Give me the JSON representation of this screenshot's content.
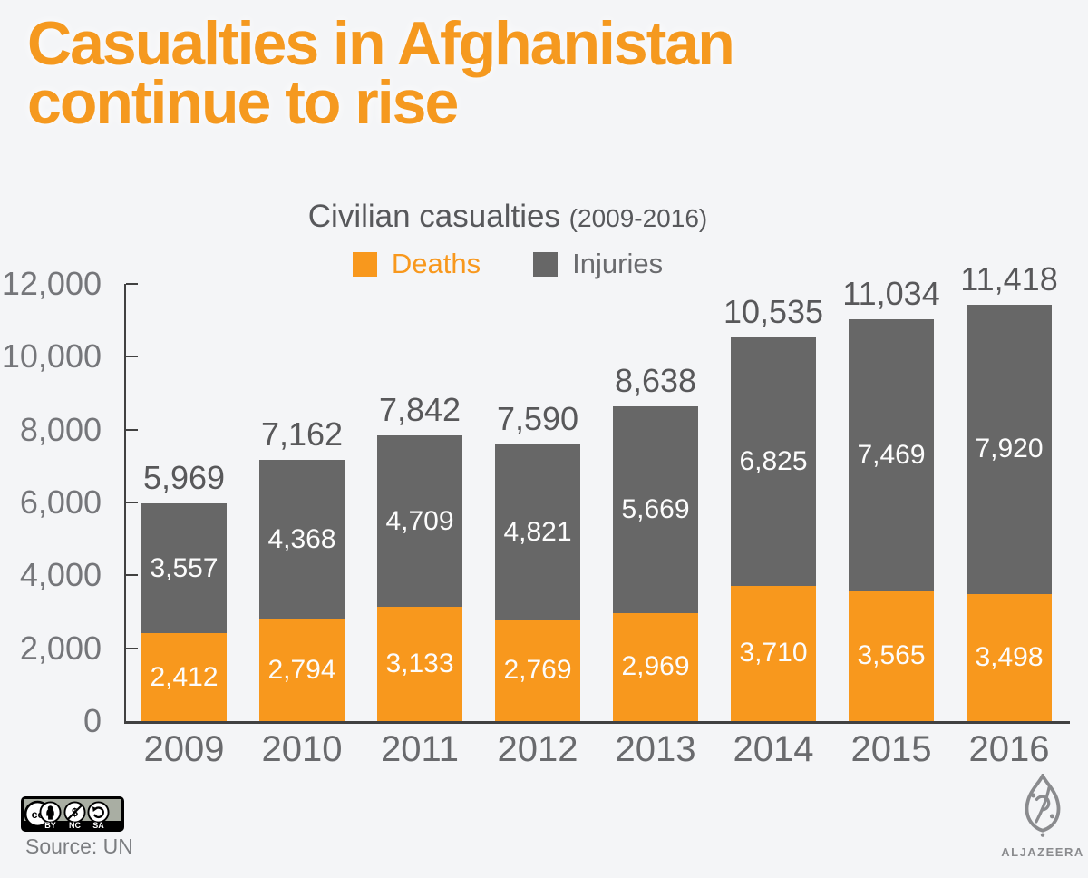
{
  "colors": {
    "background": "#f4f5f7",
    "accent_orange": "#f8981d",
    "headline_orange": "#f5991f",
    "bar_gray": "#676767",
    "axis": "#414141",
    "label_dark": "#58585a",
    "label_medium": "#696a6d",
    "label_light": "#75767a",
    "bar_value_text": "#fcfcfc"
  },
  "header": {
    "title_line1": "Casualties in Afghanistan",
    "title_line2": "continue to rise"
  },
  "chart_data": {
    "type": "bar",
    "stacked": true,
    "title": "Civilian casualties",
    "subtitle": "(2009-2016)",
    "legend_position": "top",
    "grid": false,
    "categories": [
      "2009",
      "2010",
      "2011",
      "2012",
      "2013",
      "2014",
      "2015",
      "2016"
    ],
    "series": [
      {
        "name": "Deaths",
        "color": "#f8981d",
        "values": [
          2412,
          2794,
          3133,
          2769,
          2969,
          3710,
          3565,
          3498
        ]
      },
      {
        "name": "Injuries",
        "color": "#676767",
        "values": [
          3557,
          4368,
          4709,
          4821,
          5669,
          6825,
          7469,
          7920
        ]
      }
    ],
    "totals": [
      5969,
      7162,
      7842,
      7590,
      8638,
      10535,
      11034,
      11418
    ],
    "y_axis": {
      "min": 0,
      "max": 12000,
      "ticks": [
        0,
        2000,
        4000,
        6000,
        8000,
        10000,
        12000
      ],
      "tick_labels": [
        "0",
        "2,000",
        "4,000",
        "6,000",
        "8,000",
        "10,000",
        "12,000"
      ]
    },
    "x_axis": {
      "label": "",
      "tick_labels": [
        "2009",
        "2010",
        "2011",
        "2012",
        "2013",
        "2014",
        "2015",
        "2016"
      ]
    }
  },
  "footer": {
    "license": {
      "cc": "cc",
      "by": "BY",
      "nc": "NC",
      "sa": "SA"
    },
    "source_label": "Source: UN",
    "brand_wordmark": "ALJAZEERA"
  }
}
